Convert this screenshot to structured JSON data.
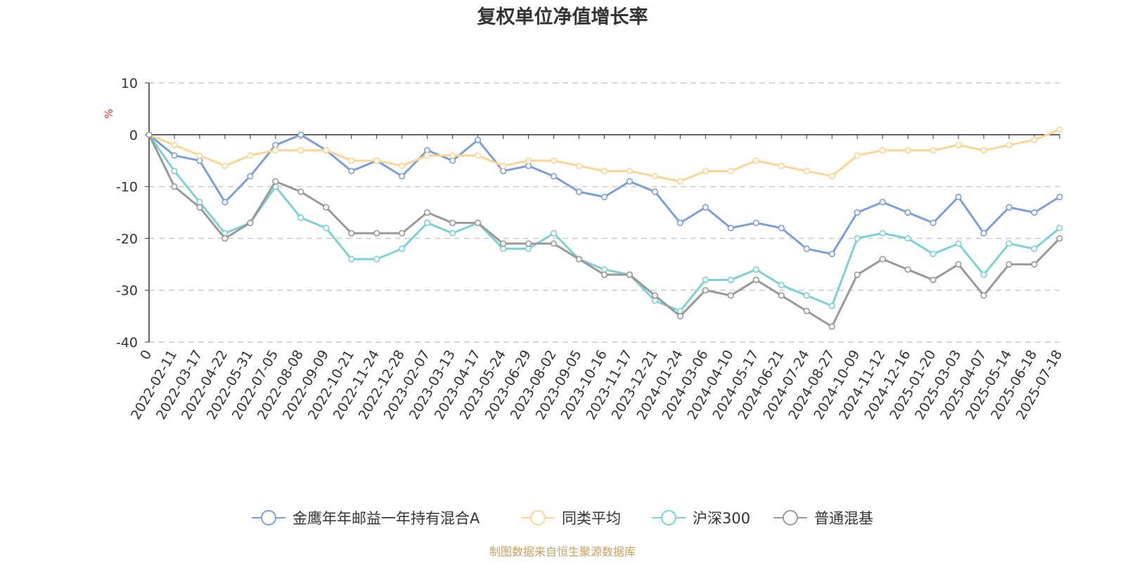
{
  "chart_data": {
    "type": "line",
    "title": "复权单位净值增长率",
    "y_unit": "%",
    "ylim": [
      -40,
      10
    ],
    "y_ticks": [
      "10",
      "0",
      "-10",
      "-20",
      "-30",
      "-40"
    ],
    "y_tick_values": [
      10,
      0,
      -10,
      -20,
      -30,
      -40
    ],
    "grid": "horizontal dashed",
    "legend_position": "bottom-center",
    "x": [
      "0",
      "2022-02-11",
      "2022-03-17",
      "2022-04-22",
      "2022-05-31",
      "2022-07-05",
      "2022-08-08",
      "2022-09-09",
      "2022-10-21",
      "2022-11-24",
      "2022-12-28",
      "2023-02-07",
      "2023-03-13",
      "2023-04-17",
      "2023-05-24",
      "2023-06-29",
      "2023-08-02",
      "2023-09-05",
      "2023-10-16",
      "2023-11-17",
      "2023-12-21",
      "2024-01-24",
      "2024-03-06",
      "2024-04-10",
      "2024-05-17",
      "2024-06-21",
      "2024-07-24",
      "2024-08-27",
      "2024-10-09",
      "2024-11-12",
      "2024-12-16",
      "2025-01-20",
      "2025-03-03",
      "2025-04-07",
      "2025-05-14",
      "2025-06-18",
      "2025-07-18"
    ],
    "series": [
      {
        "name": "金鹰年年邮益一年持有混合A",
        "color": "#7b9fd6",
        "values": [
          0,
          -4,
          -5,
          -13,
          -8,
          -2,
          0,
          -3,
          -7,
          -5,
          -8,
          -3,
          -5,
          -1,
          -7,
          -6,
          -8,
          -11,
          -12,
          -9,
          -11,
          -17,
          -14,
          -18,
          -17,
          -18,
          -22,
          -23,
          -15,
          -13,
          -15,
          -17,
          -12,
          -19,
          -14,
          -15,
          -12
        ]
      },
      {
        "name": "同类平均",
        "color": "#fcd595",
        "values": [
          0,
          -2,
          -4,
          -6,
          -4,
          -3,
          -3,
          -3,
          -5,
          -5,
          -6,
          -4,
          -4,
          -4,
          -6,
          -5,
          -5,
          -6,
          -7,
          -7,
          -8,
          -9,
          -7,
          -7,
          -5,
          -6,
          -7,
          -8,
          -4,
          -3,
          -3,
          -3,
          -2,
          -3,
          -2,
          -1,
          1
        ]
      },
      {
        "name": "沪深300",
        "color": "#7dd0d6",
        "values": [
          0,
          -7,
          -13,
          -19,
          -17,
          -10,
          -16,
          -18,
          -24,
          -24,
          -22,
          -17,
          -19,
          -17,
          -22,
          -22,
          -19,
          -24,
          -26,
          -27,
          -32,
          -34,
          -28,
          -28,
          -26,
          -29,
          -31,
          -33,
          -20,
          -19,
          -20,
          -23,
          -21,
          -27,
          -21,
          -22,
          -18
        ]
      },
      {
        "name": "普通混基",
        "color": "#999999",
        "values": [
          0,
          -10,
          -14,
          -20,
          -17,
          -9,
          -11,
          -14,
          -19,
          -19,
          -19,
          -15,
          -17,
          -17,
          -21,
          -21,
          -21,
          -24,
          -27,
          -27,
          -31,
          -35,
          -30,
          -31,
          -28,
          -31,
          -34,
          -37,
          -27,
          -24,
          -26,
          -28,
          -25,
          -31,
          -25,
          -25,
          -20
        ]
      }
    ]
  },
  "legend": {
    "items": [
      {
        "label": "金鹰年年邮益一年持有混合A",
        "color": "#7b9fd6"
      },
      {
        "label": "同类平均",
        "color": "#fcd595"
      },
      {
        "label": "沪深300",
        "color": "#7dd0d6"
      },
      {
        "label": "普通混基",
        "color": "#999999"
      }
    ]
  },
  "source_text": "制图数据来自恒生聚源数据库",
  "colors": {
    "source": "#c8a060",
    "unit": "#e03030",
    "grid": "#cccccc",
    "axis": "#333333"
  }
}
